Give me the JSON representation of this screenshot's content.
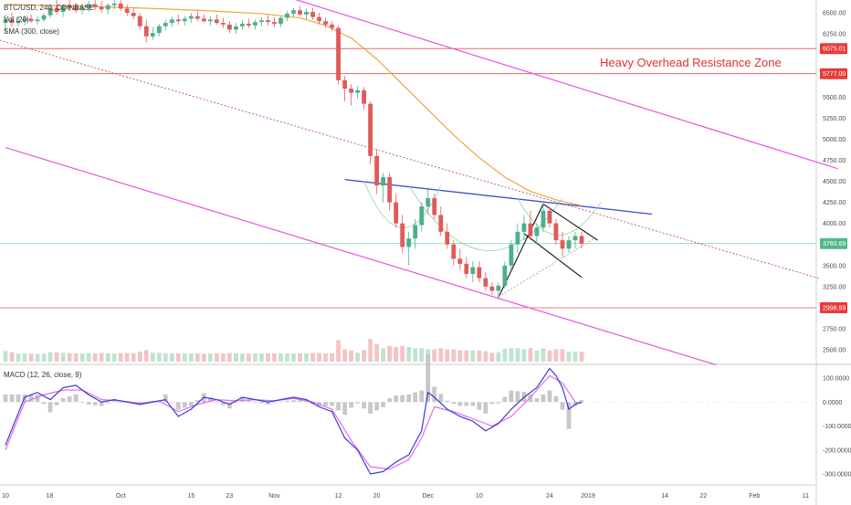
{
  "chart_data": {
    "type": "candlestick",
    "legend": {
      "symbol": "BTC/USD, 240, COINBASE",
      "volume": "Vol (20)",
      "moving_average": "SMA (300, close)"
    },
    "colors": {
      "up": "#4caf8a",
      "down": "#e05a5a",
      "sma": "#f2a53c",
      "channel": "#e255e2",
      "resistance": "#e45151",
      "neckline": "#3d54c9",
      "macd": "#3b3bd9",
      "signal": "#e36ee3",
      "histogram": "#c8c8c8",
      "note": "#e33030",
      "price_line": "#8fd4b2"
    },
    "price_axis": {
      "ylim": [
        2350,
        6650
      ],
      "ticks": [
        {
          "value": 6500,
          "label": "6500.00"
        },
        {
          "value": 6250,
          "label": "6250.00"
        },
        {
          "value": 5500,
          "label": "5500.00"
        },
        {
          "value": 5250,
          "label": "5250.00"
        },
        {
          "value": 5000,
          "label": "5000.00"
        },
        {
          "value": 4750,
          "label": "4750.00"
        },
        {
          "value": 4500,
          "label": "4500.00"
        },
        {
          "value": 4250,
          "label": "4250.00"
        },
        {
          "value": 4000,
          "label": "4000.00"
        },
        {
          "value": 3500,
          "label": "3500.00"
        },
        {
          "value": 3250,
          "label": "3250.00"
        },
        {
          "value": 2750,
          "label": "2750.00"
        },
        {
          "value": 2500,
          "label": "2500.00"
        }
      ]
    },
    "price_tags": [
      {
        "value": 6075.01,
        "label": "6075.01",
        "color": "#e83b3b"
      },
      {
        "value": 5777.0,
        "label": "5777.00",
        "color": "#e83b3b"
      },
      {
        "value": 3760.69,
        "label": "3760.69",
        "color": "#53b887"
      },
      {
        "value": 2998.99,
        "label": "2998.99",
        "color": "#e83b3b"
      }
    ],
    "resistance_lines": [
      6075.01,
      5777.0,
      2998.99
    ],
    "current_price": 3760.69,
    "annotation": "Heavy Overhead Resistance Zone",
    "macd": {
      "label": "MACD (12, 26, close, 9)",
      "ylim": [
        -330,
        150
      ],
      "ticks": [
        {
          "value": 100,
          "label": "100.0000"
        },
        {
          "value": 0,
          "label": "0.0000"
        },
        {
          "value": -100,
          "label": "-100.0000"
        },
        {
          "value": -200,
          "label": "-200.0000"
        },
        {
          "value": -300,
          "label": "-300.0000"
        }
      ]
    },
    "time_axis": {
      "range": [
        0,
        118
      ],
      "ticks": [
        {
          "t": 0,
          "label": "10"
        },
        {
          "t": 6.9,
          "label": "18"
        },
        {
          "t": 18,
          "label": "Oct"
        },
        {
          "t": 29,
          "label": "15"
        },
        {
          "t": 35,
          "label": "23"
        },
        {
          "t": 42,
          "label": "Nov"
        },
        {
          "t": 52,
          "label": "12"
        },
        {
          "t": 58,
          "label": "20"
        },
        {
          "t": 66,
          "label": "Dec"
        },
        {
          "t": 74,
          "label": "10"
        },
        {
          "t": 85,
          "label": "24"
        },
        {
          "t": 91,
          "label": "2019"
        },
        {
          "t": 103,
          "label": "14"
        },
        {
          "t": 109,
          "label": "22"
        },
        {
          "t": 117,
          "label": "Feb"
        },
        {
          "t": 125,
          "label": "11"
        }
      ]
    },
    "candles": [
      {
        "t": 0,
        "o": 6380,
        "h": 6480,
        "l": 6250,
        "c": 6420
      },
      {
        "t": 1,
        "o": 6420,
        "h": 6500,
        "l": 6330,
        "c": 6380
      },
      {
        "t": 2,
        "o": 6380,
        "h": 6450,
        "l": 6340,
        "c": 6400
      },
      {
        "t": 3,
        "o": 6400,
        "h": 6470,
        "l": 6350,
        "c": 6430
      },
      {
        "t": 4,
        "o": 6430,
        "h": 6480,
        "l": 6380,
        "c": 6400
      },
      {
        "t": 5,
        "o": 6400,
        "h": 6460,
        "l": 6360,
        "c": 6420
      },
      {
        "t": 6,
        "o": 6420,
        "h": 6500,
        "l": 6390,
        "c": 6470
      },
      {
        "t": 7,
        "o": 6470,
        "h": 6600,
        "l": 6440,
        "c": 6560
      },
      {
        "t": 8,
        "o": 6560,
        "h": 6650,
        "l": 6480,
        "c": 6510
      },
      {
        "t": 9,
        "o": 6510,
        "h": 6600,
        "l": 6450,
        "c": 6580
      },
      {
        "t": 10,
        "o": 6580,
        "h": 6650,
        "l": 6520,
        "c": 6560
      },
      {
        "t": 11,
        "o": 6560,
        "h": 6620,
        "l": 6500,
        "c": 6530
      },
      {
        "t": 12,
        "o": 6530,
        "h": 6600,
        "l": 6480,
        "c": 6560
      },
      {
        "t": 13,
        "o": 6560,
        "h": 6640,
        "l": 6510,
        "c": 6600
      },
      {
        "t": 14,
        "o": 6600,
        "h": 6650,
        "l": 6530,
        "c": 6570
      },
      {
        "t": 15,
        "o": 6570,
        "h": 6640,
        "l": 6500,
        "c": 6540
      },
      {
        "t": 16,
        "o": 6540,
        "h": 6610,
        "l": 6480,
        "c": 6590
      },
      {
        "t": 17,
        "o": 6590,
        "h": 6650,
        "l": 6540,
        "c": 6610
      },
      {
        "t": 18,
        "o": 6610,
        "h": 6650,
        "l": 6520,
        "c": 6550
      },
      {
        "t": 19,
        "o": 6550,
        "h": 6600,
        "l": 6460,
        "c": 6500
      },
      {
        "t": 20,
        "o": 6500,
        "h": 6560,
        "l": 6420,
        "c": 6460
      },
      {
        "t": 21,
        "o": 6460,
        "h": 6500,
        "l": 6300,
        "c": 6340
      },
      {
        "t": 22,
        "o": 6340,
        "h": 6420,
        "l": 6150,
        "c": 6220
      },
      {
        "t": 23,
        "o": 6220,
        "h": 6330,
        "l": 6180,
        "c": 6260
      },
      {
        "t": 24,
        "o": 6260,
        "h": 6370,
        "l": 6220,
        "c": 6340
      },
      {
        "t": 25,
        "o": 6340,
        "h": 6420,
        "l": 6290,
        "c": 6380
      },
      {
        "t": 26,
        "o": 6380,
        "h": 6460,
        "l": 6330,
        "c": 6420
      },
      {
        "t": 27,
        "o": 6420,
        "h": 6480,
        "l": 6360,
        "c": 6400
      },
      {
        "t": 28,
        "o": 6400,
        "h": 6460,
        "l": 6350,
        "c": 6430
      },
      {
        "t": 29,
        "o": 6430,
        "h": 6500,
        "l": 6380,
        "c": 6460
      },
      {
        "t": 30,
        "o": 6460,
        "h": 6520,
        "l": 6400,
        "c": 6430
      },
      {
        "t": 31,
        "o": 6430,
        "h": 6480,
        "l": 6380,
        "c": 6400
      },
      {
        "t": 32,
        "o": 6400,
        "h": 6460,
        "l": 6350,
        "c": 6420
      },
      {
        "t": 33,
        "o": 6420,
        "h": 6480,
        "l": 6360,
        "c": 6380
      },
      {
        "t": 34,
        "o": 6380,
        "h": 6440,
        "l": 6320,
        "c": 6360
      },
      {
        "t": 35,
        "o": 6360,
        "h": 6400,
        "l": 6260,
        "c": 6300
      },
      {
        "t": 36,
        "o": 6300,
        "h": 6380,
        "l": 6250,
        "c": 6340
      },
      {
        "t": 37,
        "o": 6340,
        "h": 6410,
        "l": 6300,
        "c": 6370
      },
      {
        "t": 38,
        "o": 6370,
        "h": 6430,
        "l": 6320,
        "c": 6350
      },
      {
        "t": 39,
        "o": 6350,
        "h": 6420,
        "l": 6300,
        "c": 6390
      },
      {
        "t": 40,
        "o": 6390,
        "h": 6450,
        "l": 6340,
        "c": 6410
      },
      {
        "t": 41,
        "o": 6410,
        "h": 6470,
        "l": 6350,
        "c": 6390
      },
      {
        "t": 42,
        "o": 6390,
        "h": 6450,
        "l": 6330,
        "c": 6370
      },
      {
        "t": 43,
        "o": 6370,
        "h": 6460,
        "l": 6330,
        "c": 6440
      },
      {
        "t": 44,
        "o": 6440,
        "h": 6520,
        "l": 6400,
        "c": 6490
      },
      {
        "t": 45,
        "o": 6490,
        "h": 6560,
        "l": 6450,
        "c": 6530
      },
      {
        "t": 46,
        "o": 6530,
        "h": 6580,
        "l": 6460,
        "c": 6480
      },
      {
        "t": 47,
        "o": 6480,
        "h": 6550,
        "l": 6420,
        "c": 6510
      },
      {
        "t": 48,
        "o": 6510,
        "h": 6560,
        "l": 6420,
        "c": 6450
      },
      {
        "t": 49,
        "o": 6450,
        "h": 6500,
        "l": 6360,
        "c": 6400
      },
      {
        "t": 50,
        "o": 6400,
        "h": 6440,
        "l": 6320,
        "c": 6360
      },
      {
        "t": 51,
        "o": 6360,
        "h": 6400,
        "l": 6280,
        "c": 6320
      },
      {
        "t": 52,
        "o": 6320,
        "h": 6350,
        "l": 5650,
        "c": 5700
      },
      {
        "t": 53,
        "o": 5700,
        "h": 5750,
        "l": 5450,
        "c": 5600
      },
      {
        "t": 54,
        "o": 5600,
        "h": 5650,
        "l": 5400,
        "c": 5550
      },
      {
        "t": 55,
        "o": 5550,
        "h": 5630,
        "l": 5480,
        "c": 5580
      },
      {
        "t": 56,
        "o": 5580,
        "h": 5620,
        "l": 5350,
        "c": 5420
      },
      {
        "t": 57,
        "o": 5420,
        "h": 5450,
        "l": 4700,
        "c": 4800
      },
      {
        "t": 58,
        "o": 4800,
        "h": 4880,
        "l": 4350,
        "c": 4450
      },
      {
        "t": 59,
        "o": 4450,
        "h": 4600,
        "l": 4250,
        "c": 4550
      },
      {
        "t": 60,
        "o": 4550,
        "h": 4600,
        "l": 4150,
        "c": 4250
      },
      {
        "t": 61,
        "o": 4250,
        "h": 4350,
        "l": 3950,
        "c": 4000
      },
      {
        "t": 62,
        "o": 4000,
        "h": 4100,
        "l": 3650,
        "c": 3720
      },
      {
        "t": 63,
        "o": 3720,
        "h": 3900,
        "l": 3500,
        "c": 3820
      },
      {
        "t": 64,
        "o": 3820,
        "h": 4050,
        "l": 3700,
        "c": 3980
      },
      {
        "t": 65,
        "o": 3980,
        "h": 4250,
        "l": 3900,
        "c": 4200
      },
      {
        "t": 66,
        "o": 4200,
        "h": 4400,
        "l": 4100,
        "c": 4300
      },
      {
        "t": 67,
        "o": 4300,
        "h": 4350,
        "l": 4050,
        "c": 4100
      },
      {
        "t": 68,
        "o": 4100,
        "h": 4200,
        "l": 3850,
        "c": 3900
      },
      {
        "t": 69,
        "o": 3900,
        "h": 4000,
        "l": 3700,
        "c": 3750
      },
      {
        "t": 70,
        "o": 3750,
        "h": 3800,
        "l": 3500,
        "c": 3580
      },
      {
        "t": 71,
        "o": 3580,
        "h": 3700,
        "l": 3450,
        "c": 3520
      },
      {
        "t": 72,
        "o": 3520,
        "h": 3600,
        "l": 3350,
        "c": 3400
      },
      {
        "t": 73,
        "o": 3400,
        "h": 3550,
        "l": 3300,
        "c": 3480
      },
      {
        "t": 74,
        "o": 3480,
        "h": 3550,
        "l": 3300,
        "c": 3350
      },
      {
        "t": 75,
        "o": 3350,
        "h": 3420,
        "l": 3200,
        "c": 3250
      },
      {
        "t": 76,
        "o": 3250,
        "h": 3300,
        "l": 3150,
        "c": 3200
      },
      {
        "t": 77,
        "o": 3200,
        "h": 3300,
        "l": 3130,
        "c": 3260
      },
      {
        "t": 78,
        "o": 3260,
        "h": 3550,
        "l": 3230,
        "c": 3500
      },
      {
        "t": 79,
        "o": 3500,
        "h": 3800,
        "l": 3450,
        "c": 3750
      },
      {
        "t": 80,
        "o": 3750,
        "h": 4000,
        "l": 3650,
        "c": 3900
      },
      {
        "t": 81,
        "o": 3900,
        "h": 4100,
        "l": 3800,
        "c": 4000
      },
      {
        "t": 82,
        "o": 4000,
        "h": 4150,
        "l": 3800,
        "c": 3850
      },
      {
        "t": 83,
        "o": 3850,
        "h": 4000,
        "l": 3750,
        "c": 3950
      },
      {
        "t": 84,
        "o": 3950,
        "h": 4240,
        "l": 3900,
        "c": 4150
      },
      {
        "t": 85,
        "o": 4150,
        "h": 4200,
        "l": 3950,
        "c": 4000
      },
      {
        "t": 86,
        "o": 4000,
        "h": 4050,
        "l": 3750,
        "c": 3800
      },
      {
        "t": 87,
        "o": 3800,
        "h": 3900,
        "l": 3600,
        "c": 3700
      },
      {
        "t": 88,
        "o": 3700,
        "h": 3850,
        "l": 3650,
        "c": 3800
      },
      {
        "t": 89,
        "o": 3800,
        "h": 3900,
        "l": 3700,
        "c": 3850
      },
      {
        "t": 90,
        "o": 3850,
        "h": 3900,
        "l": 3700,
        "c": 3760
      }
    ],
    "sma_series": [
      {
        "t": 0,
        "v": 6600
      },
      {
        "t": 10,
        "v": 6580
      },
      {
        "t": 20,
        "v": 6560
      },
      {
        "t": 30,
        "v": 6530
      },
      {
        "t": 40,
        "v": 6490
      },
      {
        "t": 46,
        "v": 6440
      },
      {
        "t": 50,
        "v": 6350
      },
      {
        "t": 54,
        "v": 6200
      },
      {
        "t": 58,
        "v": 5950
      },
      {
        "t": 62,
        "v": 5650
      },
      {
        "t": 66,
        "v": 5350
      },
      {
        "t": 70,
        "v": 5050
      },
      {
        "t": 74,
        "v": 4780
      },
      {
        "t": 78,
        "v": 4550
      },
      {
        "t": 82,
        "v": 4380
      },
      {
        "t": 86,
        "v": 4280
      },
      {
        "t": 90,
        "v": 4210
      }
    ],
    "macd_series": [
      {
        "t": 0,
        "v": -180
      },
      {
        "t": 3,
        "v": 20
      },
      {
        "t": 5,
        "v": 40
      },
      {
        "t": 7,
        "v": 10
      },
      {
        "t": 9,
        "v": 60
      },
      {
        "t": 11,
        "v": 70
      },
      {
        "t": 13,
        "v": 30
      },
      {
        "t": 15,
        "v": 0
      },
      {
        "t": 17,
        "v": 10
      },
      {
        "t": 19,
        "v": 0
      },
      {
        "t": 21,
        "v": -10
      },
      {
        "t": 23,
        "v": 0
      },
      {
        "t": 25,
        "v": 10
      },
      {
        "t": 27,
        "v": -60
      },
      {
        "t": 29,
        "v": -30
      },
      {
        "t": 31,
        "v": 20
      },
      {
        "t": 33,
        "v": 10
      },
      {
        "t": 35,
        "v": -10
      },
      {
        "t": 37,
        "v": 20
      },
      {
        "t": 39,
        "v": 10
      },
      {
        "t": 41,
        "v": 0
      },
      {
        "t": 43,
        "v": 10
      },
      {
        "t": 45,
        "v": 20
      },
      {
        "t": 47,
        "v": 10
      },
      {
        "t": 49,
        "v": -20
      },
      {
        "t": 51,
        "v": -40
      },
      {
        "t": 53,
        "v": -150
      },
      {
        "t": 55,
        "v": -200
      },
      {
        "t": 57,
        "v": -300
      },
      {
        "t": 59,
        "v": -290
      },
      {
        "t": 61,
        "v": -250
      },
      {
        "t": 63,
        "v": -220
      },
      {
        "t": 65,
        "v": -120
      },
      {
        "t": 66,
        "v": 40
      },
      {
        "t": 67,
        "v": 20
      },
      {
        "t": 69,
        "v": -30
      },
      {
        "t": 71,
        "v": -60
      },
      {
        "t": 73,
        "v": -80
      },
      {
        "t": 75,
        "v": -120
      },
      {
        "t": 77,
        "v": -90
      },
      {
        "t": 79,
        "v": -30
      },
      {
        "t": 81,
        "v": 20
      },
      {
        "t": 83,
        "v": 60
      },
      {
        "t": 85,
        "v": 140
      },
      {
        "t": 86,
        "v": 110
      },
      {
        "t": 87,
        "v": 60
      },
      {
        "t": 88,
        "v": -30
      },
      {
        "t": 89,
        "v": -10
      },
      {
        "t": 90,
        "v": 0
      }
    ],
    "signal_series": [
      {
        "t": 0,
        "v": -200
      },
      {
        "t": 3,
        "v": 0
      },
      {
        "t": 6,
        "v": 30
      },
      {
        "t": 9,
        "v": 50
      },
      {
        "t": 12,
        "v": 50
      },
      {
        "t": 15,
        "v": 10
      },
      {
        "t": 18,
        "v": 5
      },
      {
        "t": 21,
        "v": -5
      },
      {
        "t": 24,
        "v": 5
      },
      {
        "t": 27,
        "v": -40
      },
      {
        "t": 30,
        "v": -10
      },
      {
        "t": 33,
        "v": 10
      },
      {
        "t": 36,
        "v": 5
      },
      {
        "t": 39,
        "v": 10
      },
      {
        "t": 42,
        "v": 5
      },
      {
        "t": 45,
        "v": 15
      },
      {
        "t": 48,
        "v": 0
      },
      {
        "t": 51,
        "v": -30
      },
      {
        "t": 54,
        "v": -160
      },
      {
        "t": 57,
        "v": -270
      },
      {
        "t": 60,
        "v": -280
      },
      {
        "t": 63,
        "v": -240
      },
      {
        "t": 65,
        "v": -150
      },
      {
        "t": 67,
        "v": -20
      },
      {
        "t": 70,
        "v": -40
      },
      {
        "t": 73,
        "v": -70
      },
      {
        "t": 76,
        "v": -100
      },
      {
        "t": 79,
        "v": -60
      },
      {
        "t": 82,
        "v": 20
      },
      {
        "t": 85,
        "v": 110
      },
      {
        "t": 87,
        "v": 80
      },
      {
        "t": 89,
        "v": 0
      },
      {
        "t": 90,
        "v": -5
      }
    ]
  }
}
